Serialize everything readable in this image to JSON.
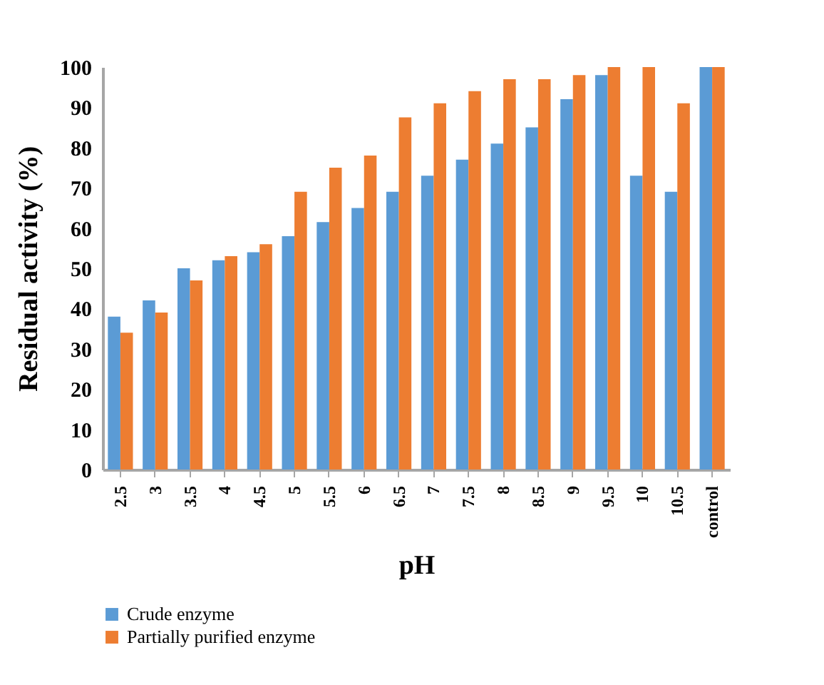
{
  "chart_data": {
    "type": "bar",
    "xlabel": "pH",
    "ylabel": "Residual activity (%)",
    "categories": [
      "2.5",
      "3",
      "3.5",
      "4",
      "4.5",
      "5",
      "5.5",
      "6",
      "6.5",
      "7",
      "7.5",
      "8",
      "8.5",
      "9",
      "9.5",
      "10",
      "10.5",
      "control"
    ],
    "series": [
      {
        "name": "Crude enzyme",
        "color": "#5b9bd5",
        "values": [
          38,
          42,
          50,
          52,
          54,
          58,
          61.5,
          65,
          69,
          73,
          77,
          81,
          85,
          92,
          98,
          73,
          69,
          100
        ]
      },
      {
        "name": "Partially purified enzyme",
        "color": "#ed7d31",
        "values": [
          34,
          39,
          47,
          53,
          56,
          69,
          75,
          78,
          87.5,
          91,
          94,
          97,
          97,
          98,
          100,
          100,
          91,
          100
        ]
      }
    ],
    "ylim": [
      0,
      100
    ],
    "yticks": [
      0,
      10,
      20,
      30,
      40,
      50,
      60,
      70,
      80,
      90,
      100
    ],
    "grid": false,
    "legend": "bottom"
  }
}
